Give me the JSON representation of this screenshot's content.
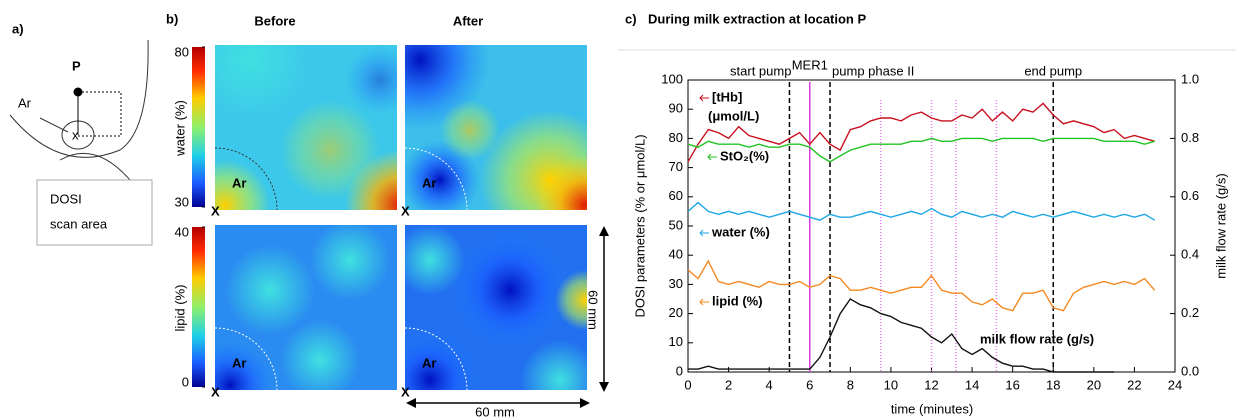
{
  "panel_a": {
    "label": "a)",
    "point": "P",
    "region": "Ar",
    "center": "x",
    "box_lines": [
      "DOSI",
      "scan area"
    ]
  },
  "panel_b": {
    "label": "b)",
    "columns": [
      "Before",
      "After"
    ],
    "rows": [
      {
        "label": "water (%)",
        "ticks": [
          80,
          30
        ]
      },
      {
        "label": "lipid (%)",
        "ticks": [
          40,
          0
        ]
      }
    ],
    "region": "Ar",
    "corner": "X",
    "scale": "60 mm"
  },
  "chart_data": {
    "type": "line",
    "panel_label": "c)",
    "title": "During milk extraction at location P",
    "xlabel": "time (minutes)",
    "ylabel": "DOSI parameters (% or μmol/L)",
    "y2label": "milk flow rate (g/s)",
    "x": [
      0,
      0.5,
      1,
      1.5,
      2,
      2.5,
      3,
      3.5,
      4,
      4.5,
      5,
      5.5,
      6,
      6.5,
      7,
      7.5,
      8,
      8.5,
      9,
      9.5,
      10,
      10.5,
      11,
      11.5,
      12,
      12.5,
      13,
      13.5,
      14,
      14.5,
      15,
      15.5,
      16,
      16.5,
      17,
      17.5,
      18,
      18.5,
      19,
      19.5,
      20,
      20.5,
      21,
      21.5,
      22,
      22.5,
      23
    ],
    "xlim": [
      0,
      24
    ],
    "xticks": [
      0,
      2,
      4,
      6,
      8,
      10,
      12,
      14,
      16,
      18,
      20,
      22,
      24
    ],
    "ylim": [
      0,
      100
    ],
    "yticks": [
      0,
      10,
      20,
      30,
      40,
      50,
      60,
      70,
      80,
      90,
      100
    ],
    "y2lim": [
      0,
      1
    ],
    "y2ticks": [
      {
        "value": 0,
        "label": "0.0"
      },
      0.2,
      0.4,
      0.6,
      0.8,
      {
        "value": 1,
        "label": "1.0"
      }
    ],
    "series": [
      {
        "name": "[tHb]",
        "color": "#c8101e",
        "values": [
          72,
          78,
          83,
          82,
          80,
          84,
          81,
          80,
          79,
          78,
          80,
          82,
          78,
          82,
          78,
          76,
          83,
          84,
          86,
          87,
          87,
          86,
          88,
          89,
          87,
          86,
          86,
          88,
          87,
          90,
          86,
          89,
          86,
          90,
          89,
          92,
          88,
          85,
          86,
          85,
          84,
          82,
          83,
          80,
          81,
          80,
          79
        ]
      },
      {
        "name": "StO₂(%)",
        "color": "#22c322",
        "values": [
          78,
          77,
          79,
          78,
          78,
          78,
          77,
          78,
          77,
          77,
          78,
          78,
          77,
          74,
          72,
          74,
          76,
          77,
          78,
          78,
          78,
          78,
          79,
          79,
          80,
          79,
          79,
          80,
          80,
          80,
          79,
          80,
          80,
          80,
          80,
          79,
          80,
          80,
          80,
          80,
          80,
          79,
          79,
          79,
          79,
          78,
          79
        ]
      },
      {
        "name": "water (%)",
        "color": "#1ea7e6",
        "values": [
          55,
          58,
          55,
          54,
          55,
          54,
          55,
          54,
          53,
          54,
          55,
          54,
          53,
          52,
          54,
          53,
          53,
          54,
          55,
          54,
          53,
          54,
          55,
          54,
          56,
          54,
          53,
          55,
          54,
          53,
          54,
          53,
          55,
          54,
          53,
          54,
          53,
          54,
          55,
          54,
          53,
          54,
          53,
          54,
          53,
          54,
          52
        ]
      },
      {
        "name": "lipid (%)",
        "color": "#f5891f",
        "values": [
          35,
          32,
          38,
          31,
          30,
          31,
          30,
          29,
          31,
          30,
          30,
          31,
          29,
          30,
          33,
          32,
          28,
          28,
          29,
          28,
          27,
          28,
          29,
          29,
          33,
          28,
          27,
          27,
          24,
          23,
          25,
          22,
          21,
          27,
          27,
          28,
          22,
          21,
          27,
          29,
          30,
          31,
          30,
          31,
          30,
          32,
          28
        ]
      },
      {
        "name": "milk flow rate (g/s)",
        "color": "#111111",
        "axis": "y2",
        "values": [
          0.01,
          0.01,
          0.02,
          0.01,
          0.01,
          0.01,
          0.01,
          0.01,
          0.01,
          0.01,
          0.01,
          0.01,
          0.01,
          0.05,
          0.12,
          0.2,
          0.25,
          0.23,
          0.22,
          0.2,
          0.19,
          0.17,
          0.16,
          0.15,
          0.12,
          0.1,
          0.13,
          0.08,
          0.06,
          0.08,
          0.05,
          0.03,
          0.02,
          0.02,
          0.01,
          0.01,
          0,
          0,
          0,
          0,
          0,
          0,
          0,
          null,
          null,
          null,
          null
        ]
      }
    ],
    "unit_note": "(μmol/L)",
    "events": [
      {
        "x": 5,
        "label": "start pump",
        "color": "#000000"
      },
      {
        "x": 6,
        "label": "MER1",
        "color": "#e03be0"
      },
      {
        "x": 7,
        "label": "pump phase II",
        "color": "#000000"
      },
      {
        "x": 18,
        "label": "end pump",
        "color": "#000000"
      }
    ],
    "mer_lines": {
      "color": "#ee77ee",
      "x": [
        9.5,
        12,
        13.2,
        15.2
      ]
    }
  }
}
